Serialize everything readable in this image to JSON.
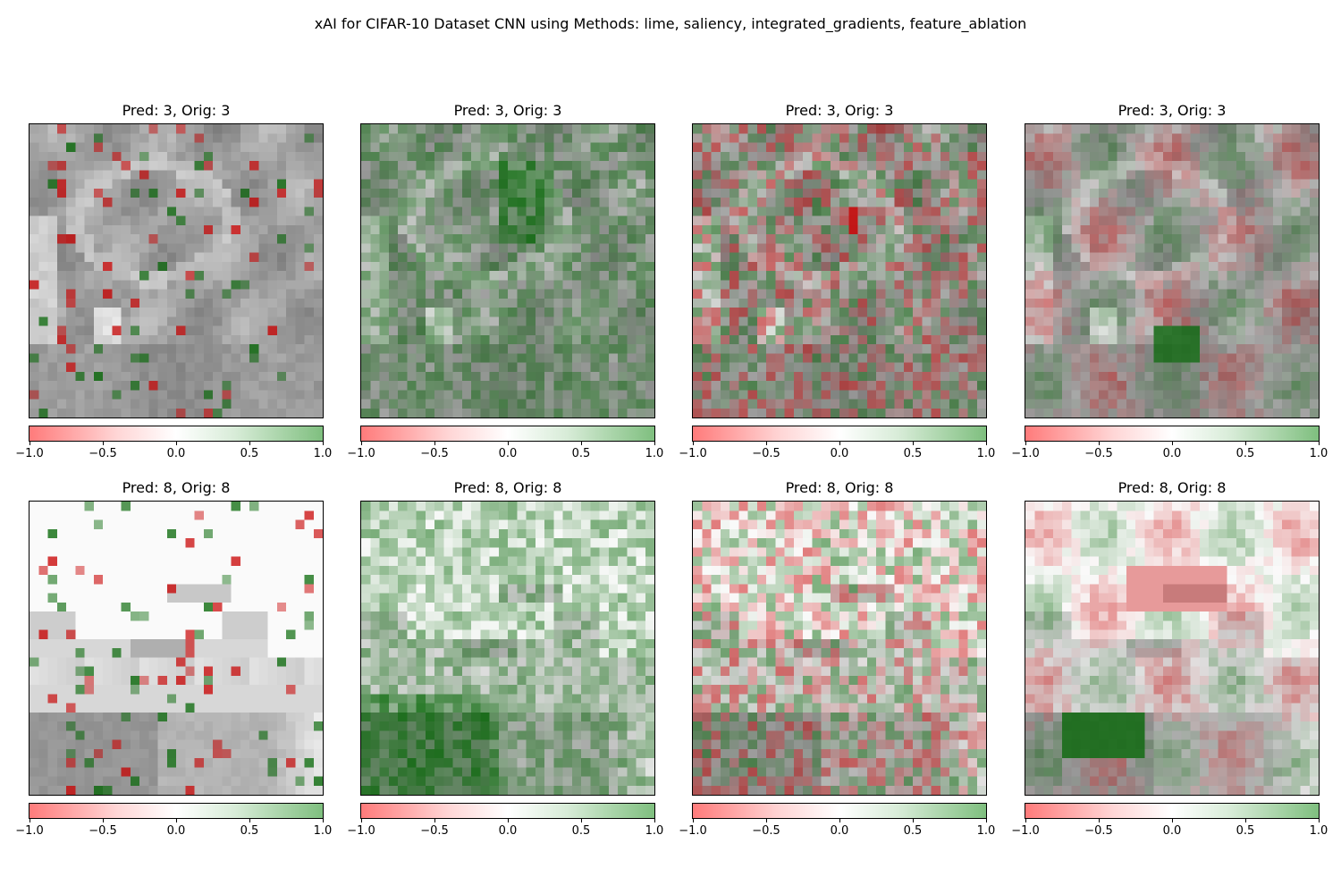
{
  "suptitle": "xAI for CIFAR-10 Dataset CNN using Methods: lime, saliency, integrated_gradients, feature_ablation",
  "chart_data": {
    "type": "heatmap",
    "methods": [
      "lime",
      "saliency",
      "integrated_gradients",
      "feature_ablation"
    ],
    "colormap": {
      "min_color": "#ff7b7b",
      "mid_color": "#ffffff",
      "max_color": "#7fbf7f"
    },
    "colorbar": {
      "range": [
        -1.0,
        1.0
      ],
      "ticks": [
        "−1.0",
        "−0.5",
        "0.0",
        "0.5",
        "1.0"
      ]
    },
    "rows": [
      {
        "title": "Pred: 3, Orig: 3",
        "base": "gray_frog"
      },
      {
        "title": "Pred: 8, Orig: 8",
        "base": "light_ship"
      }
    ],
    "panels": [
      {
        "title": "Pred: 3, Orig: 3",
        "method": "lime",
        "row": 0
      },
      {
        "title": "Pred: 3, Orig: 3",
        "method": "saliency",
        "row": 0
      },
      {
        "title": "Pred: 3, Orig: 3",
        "method": "integrated_gradients",
        "row": 0
      },
      {
        "title": "Pred: 3, Orig: 3",
        "method": "feature_ablation",
        "row": 0
      },
      {
        "title": "Pred: 8, Orig: 8",
        "method": "lime",
        "row": 1
      },
      {
        "title": "Pred: 8, Orig: 8",
        "method": "saliency",
        "row": 1
      },
      {
        "title": "Pred: 8, Orig: 8",
        "method": "integrated_gradients",
        "row": 1
      },
      {
        "title": "Pred: 8, Orig: 8",
        "method": "feature_ablation",
        "row": 1
      }
    ]
  }
}
